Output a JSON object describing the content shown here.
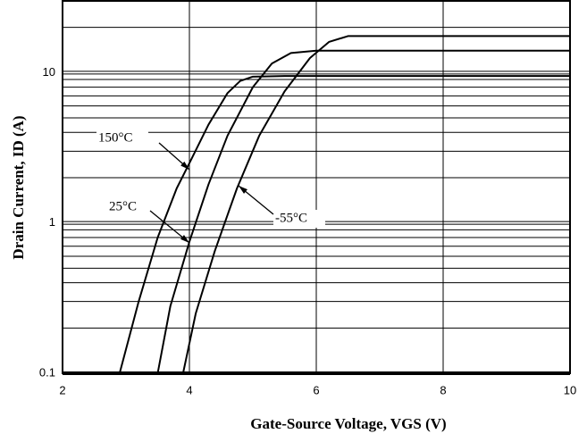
{
  "chart_data": {
    "type": "line",
    "xlabel": "Gate-Source Voltage, VGS  (V)",
    "ylabel": "Drain Current, ID (A)",
    "xlim": [
      2,
      10
    ],
    "xticks": [
      2,
      4,
      6,
      8,
      10
    ],
    "ylim": [
      0.1,
      30
    ],
    "log_y": true,
    "yticks": [
      0.1,
      1,
      10
    ],
    "y_minor_grid": [
      0.2,
      0.3,
      0.4,
      0.5,
      0.6,
      0.7,
      0.8,
      0.9,
      2,
      3,
      4,
      5,
      6,
      7,
      8,
      9,
      20
    ],
    "grid": true,
    "series": [
      {
        "name": "150°C",
        "color": "#000000",
        "x": [
          2.9,
          3.2,
          3.5,
          3.8,
          4.0,
          4.3,
          4.6,
          4.8,
          5.0,
          5.5,
          10
        ],
        "values": [
          0.1,
          0.3,
          0.8,
          1.7,
          2.5,
          4.5,
          7.3,
          8.8,
          9.4,
          9.5,
          9.5
        ]
      },
      {
        "name": "25°C",
        "color": "#000000",
        "x": [
          3.5,
          3.7,
          4.0,
          4.3,
          4.6,
          5.0,
          5.3,
          5.6,
          6.0,
          10
        ],
        "values": [
          0.1,
          0.28,
          0.75,
          1.8,
          3.8,
          8.0,
          11.5,
          13.5,
          14,
          14
        ]
      },
      {
        "name": "-55°C",
        "color": "#000000",
        "x": [
          3.9,
          4.1,
          4.4,
          4.75,
          5.1,
          5.5,
          5.9,
          6.2,
          6.5,
          10
        ],
        "values": [
          0.1,
          0.25,
          0.65,
          1.7,
          3.8,
          7.5,
          12.5,
          16,
          17.5,
          17.5
        ]
      }
    ]
  }
}
